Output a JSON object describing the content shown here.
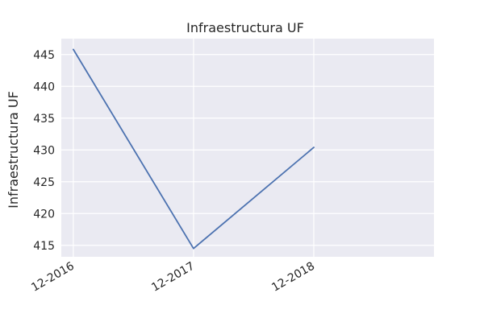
{
  "chart_data": {
    "type": "line",
    "title": "Infraestructura UF",
    "xlabel": "",
    "ylabel": "Infraestructura UF",
    "x": [
      "12-2016",
      "12-2017",
      "12-2018"
    ],
    "series": [
      {
        "values": [
          445.8,
          414.5,
          430.4
        ]
      }
    ],
    "xlim_index": [
      -0.1,
      3.0
    ],
    "ylim": [
      413.2,
      447.5
    ],
    "yticks": [
      415,
      420,
      425,
      430,
      435,
      440,
      445
    ],
    "grid": true,
    "legend": "none",
    "colors": {
      "line": "#4c72b0",
      "background": "#eaeaf2",
      "grid": "#ffffff"
    }
  }
}
